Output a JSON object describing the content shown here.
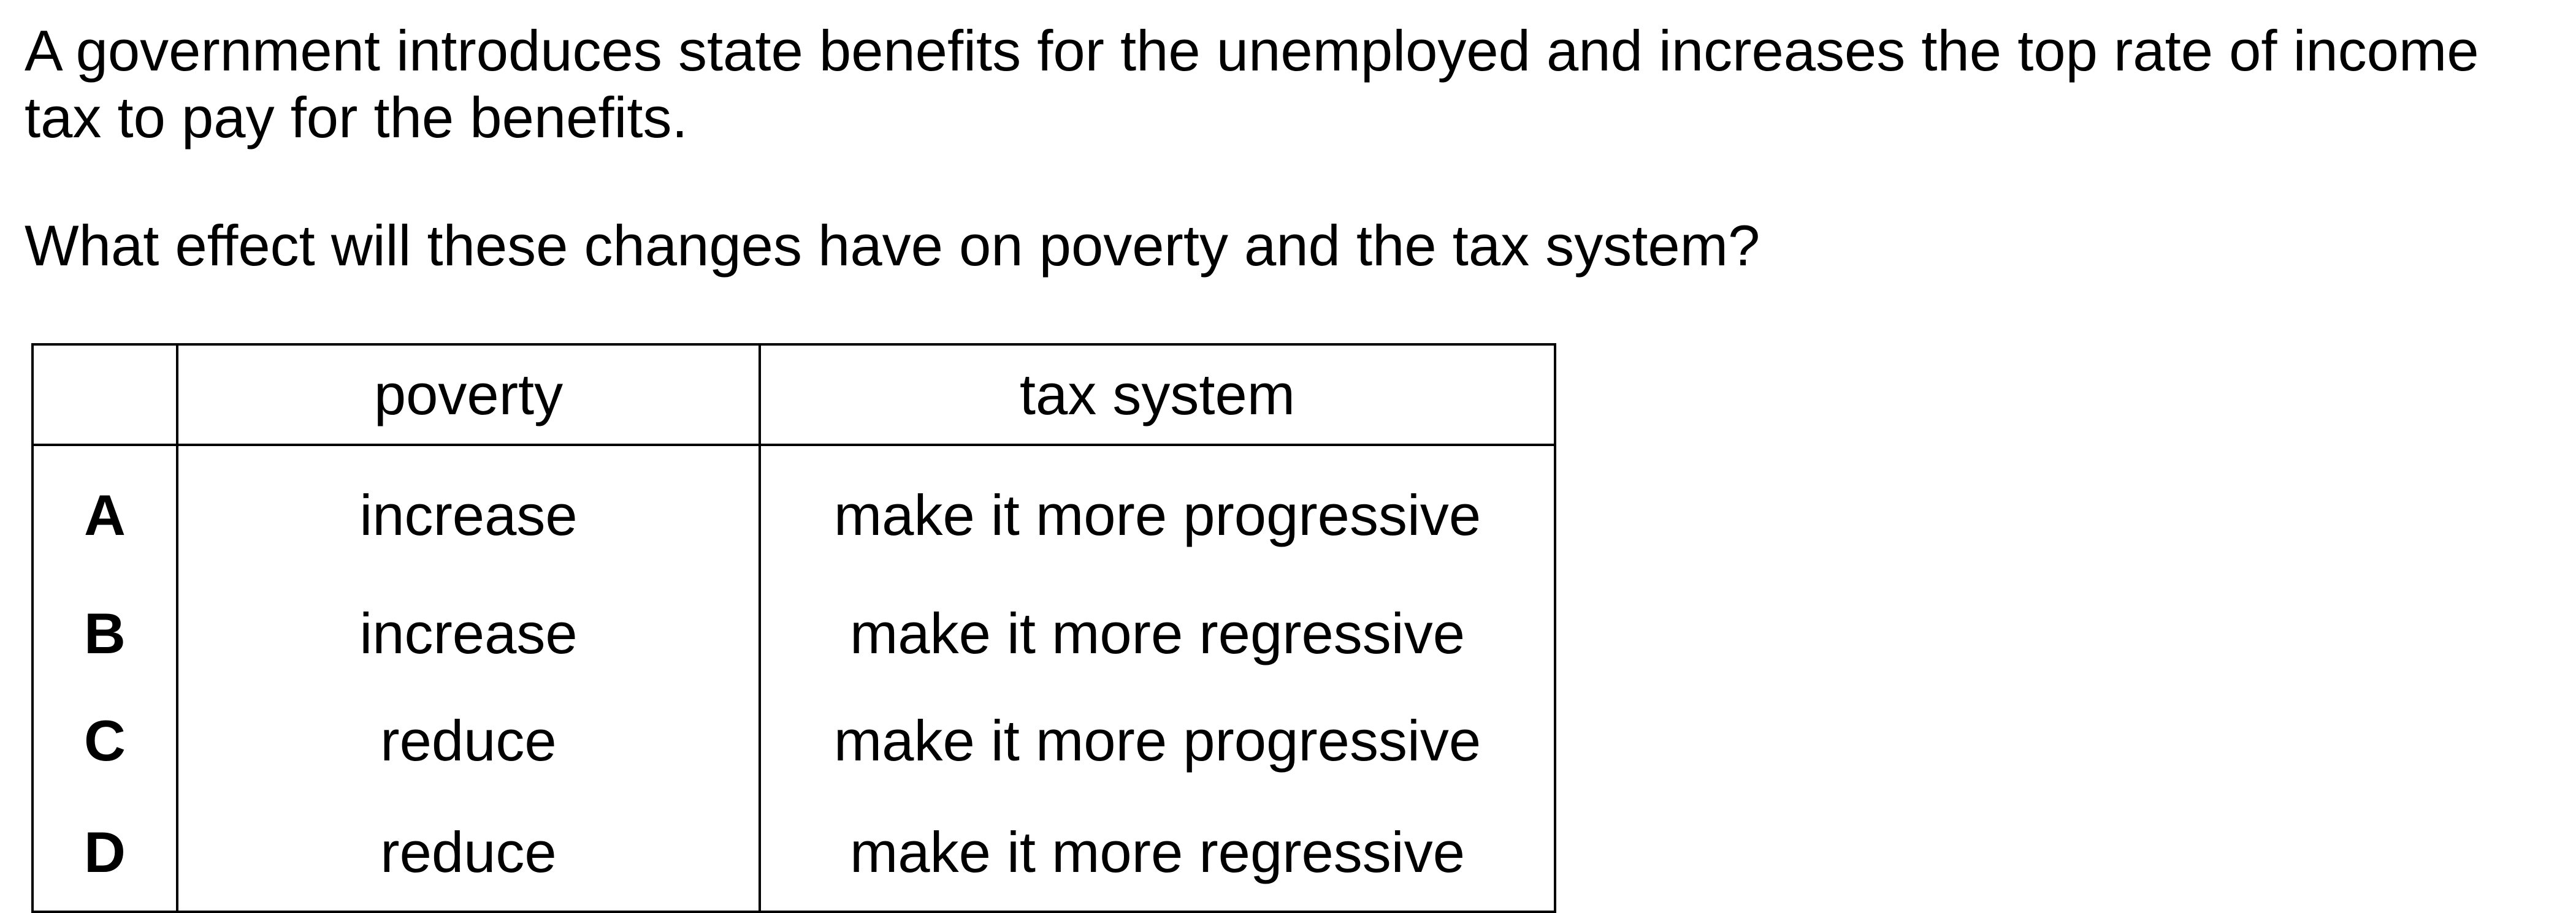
{
  "question": {
    "stem_lines": [
      "A government introduces state benefits for the unemployed and increases the top rate of income",
      "tax to pay for the benefits."
    ],
    "prompt": "What effect will these changes have on poverty and the tax system?"
  },
  "table": {
    "headers": [
      "",
      "poverty",
      "tax system"
    ],
    "rows": [
      {
        "letter": "A",
        "poverty": "increase",
        "tax_system": "make it more progressive"
      },
      {
        "letter": "B",
        "poverty": "increase",
        "tax_system": "make it more regressive"
      },
      {
        "letter": "C",
        "poverty": "reduce",
        "tax_system": "make it more progressive"
      },
      {
        "letter": "D",
        "poverty": "reduce",
        "tax_system": "make it more regressive"
      }
    ]
  }
}
